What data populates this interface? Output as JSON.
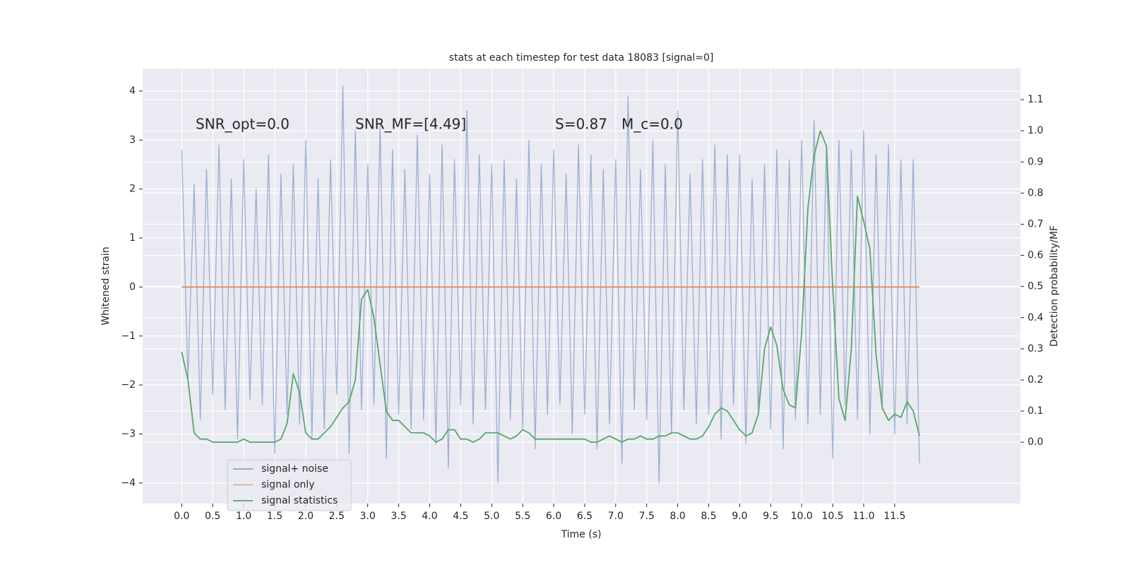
{
  "chart_data": {
    "type": "line",
    "title": "stats at each timestep for test data 18083 [signal=0]",
    "xlabel": "Time (s)",
    "ylabel": "Whitened strain",
    "y2label": "Detection probability/MF",
    "annotations": [
      "SNR_opt=0.0",
      "SNR_MF=[4.49]",
      "S=0.87",
      "M_c=0.0"
    ],
    "x": [
      0,
      0.1,
      0.2,
      0.3,
      0.4,
      0.5,
      0.6,
      0.7,
      0.8,
      0.9,
      1,
      1.1,
      1.2,
      1.3,
      1.4,
      1.5,
      1.6,
      1.7,
      1.8,
      1.9,
      2,
      2.1,
      2.2,
      2.3,
      2.4,
      2.5,
      2.6,
      2.7,
      2.8,
      2.9,
      3,
      3.1,
      3.2,
      3.3,
      3.4,
      3.5,
      3.6,
      3.7,
      3.8,
      3.9,
      4,
      4.1,
      4.2,
      4.3,
      4.4,
      4.5,
      4.6,
      4.7,
      4.8,
      4.9,
      5,
      5.1,
      5.2,
      5.3,
      5.4,
      5.5,
      5.6,
      5.7,
      5.8,
      5.9,
      6,
      6.1,
      6.2,
      6.3,
      6.4,
      6.5,
      6.6,
      6.7,
      6.8,
      6.9,
      7,
      7.1,
      7.2,
      7.3,
      7.4,
      7.5,
      7.6,
      7.7,
      7.8,
      7.9,
      8,
      8.1,
      8.2,
      8.3,
      8.4,
      8.5,
      8.6,
      8.7,
      8.8,
      8.9,
      9,
      9.1,
      9.2,
      9.3,
      9.4,
      9.5,
      9.6,
      9.7,
      9.8,
      9.9,
      10,
      10.1,
      10.2,
      10.3,
      10.4,
      10.5,
      10.6,
      10.7,
      10.8,
      10.9,
      11,
      11.1,
      11.2,
      11.3,
      11.4,
      11.5,
      11.6,
      11.7,
      11.8,
      11.9
    ],
    "series": [
      {
        "name": "signal+ noise",
        "color": "#4c72b0",
        "values": [
          2.8,
          -1.9,
          2.1,
          -2.7,
          2.4,
          -2.2,
          2.9,
          -2.5,
          2.2,
          -3.1,
          2.6,
          -2.3,
          2.0,
          -2.4,
          2.7,
          -3.4,
          2.3,
          -2.6,
          2.5,
          -2.8,
          3.0,
          -3.1,
          2.2,
          -2.9,
          2.6,
          -2.2,
          4.1,
          -3.4,
          3.2,
          -2.5,
          2.5,
          -2.4,
          3.3,
          -3.5,
          2.8,
          -2.6,
          2.4,
          -2.9,
          3.1,
          -2.7,
          2.3,
          -3.2,
          2.9,
          -3.7,
          2.6,
          -2.4,
          3.6,
          -2.8,
          2.7,
          -2.5,
          2.5,
          -4.0,
          2.6,
          -2.7,
          2.2,
          -2.9,
          3.0,
          -3.3,
          2.5,
          -2.6,
          2.8,
          -2.4,
          2.3,
          -3.0,
          2.9,
          -2.6,
          2.7,
          -3.3,
          2.4,
          -2.8,
          2.6,
          -3.6,
          3.9,
          -2.5,
          2.4,
          -2.7,
          3.0,
          -4.0,
          2.5,
          -3.0,
          3.6,
          -2.5,
          2.3,
          -2.8,
          2.6,
          -2.6,
          2.9,
          -3.1,
          2.7,
          -2.4,
          2.7,
          -3.2,
          2.2,
          -2.6,
          2.5,
          -2.9,
          2.8,
          -3.3,
          2.6,
          -2.7,
          3.0,
          -2.8,
          3.4,
          -2.6,
          2.9,
          -3.5,
          3.0,
          -2.4,
          2.8,
          -2.7,
          3.2,
          -3.0,
          2.7,
          -2.5,
          2.9,
          -3.0,
          2.6,
          -2.8,
          2.6,
          -3.6
        ]
      },
      {
        "name": "signal only",
        "color": "#dd8452",
        "x": [
          0,
          11.9
        ],
        "values": [
          0,
          0
        ]
      },
      {
        "name": "signal statistics",
        "color": "#55a868",
        "axis": "y2",
        "values": [
          0.29,
          0.2,
          0.03,
          0.01,
          0.01,
          0.0,
          0.0,
          0.0,
          0.0,
          0.0,
          0.01,
          0.0,
          0.0,
          0.0,
          0.0,
          0.0,
          0.01,
          0.06,
          0.22,
          0.16,
          0.03,
          0.01,
          0.01,
          0.03,
          0.05,
          0.08,
          0.11,
          0.13,
          0.2,
          0.46,
          0.49,
          0.4,
          0.25,
          0.1,
          0.07,
          0.07,
          0.05,
          0.03,
          0.03,
          0.03,
          0.02,
          0.0,
          0.01,
          0.04,
          0.04,
          0.01,
          0.01,
          0.0,
          0.01,
          0.03,
          0.03,
          0.03,
          0.02,
          0.01,
          0.02,
          0.04,
          0.03,
          0.01,
          0.01,
          0.01,
          0.01,
          0.01,
          0.01,
          0.01,
          0.01,
          0.01,
          0.0,
          0.0,
          0.01,
          0.02,
          0.01,
          0.0,
          0.01,
          0.01,
          0.02,
          0.01,
          0.01,
          0.02,
          0.02,
          0.03,
          0.03,
          0.02,
          0.01,
          0.01,
          0.02,
          0.05,
          0.09,
          0.11,
          0.1,
          0.07,
          0.04,
          0.02,
          0.03,
          0.09,
          0.3,
          0.37,
          0.31,
          0.17,
          0.12,
          0.11,
          0.35,
          0.75,
          0.92,
          1.0,
          0.95,
          0.5,
          0.14,
          0.07,
          0.3,
          0.79,
          0.71,
          0.62,
          0.28,
          0.11,
          0.07,
          0.09,
          0.08,
          0.13,
          0.1,
          0.02
        ]
      }
    ],
    "xlim": [
      -0.63,
      13.53
    ],
    "ylim": [
      -4.42,
      4.46
    ],
    "y2lim": [
      -0.197,
      1.2
    ],
    "xticks": [
      {
        "value": 0,
        "label": "0.0"
      },
      {
        "value": 0.5,
        "label": "0.5"
      },
      {
        "value": 1,
        "label": "1.0"
      },
      {
        "value": 1.5,
        "label": "1.5"
      },
      {
        "value": 2,
        "label": "2.0"
      },
      {
        "value": 2.5,
        "label": "2.5"
      },
      {
        "value": 3,
        "label": "3.0"
      },
      {
        "value": 3.5,
        "label": "3.5"
      },
      {
        "value": 4,
        "label": "4.0"
      },
      {
        "value": 4.5,
        "label": "4.5"
      },
      {
        "value": 5,
        "label": "5.0"
      },
      {
        "value": 5.5,
        "label": "5.5"
      },
      {
        "value": 6,
        "label": "6.0"
      },
      {
        "value": 6.5,
        "label": "6.5"
      },
      {
        "value": 7,
        "label": "7.0"
      },
      {
        "value": 7.5,
        "label": "7.5"
      },
      {
        "value": 8,
        "label": "8.0"
      },
      {
        "value": 8.5,
        "label": "8.5"
      },
      {
        "value": 9,
        "label": "9.0"
      },
      {
        "value": 9.5,
        "label": "9.5"
      },
      {
        "value": 10,
        "label": "10.0"
      },
      {
        "value": 10.5,
        "label": "10.5"
      },
      {
        "value": 11,
        "label": "11.0"
      },
      {
        "value": 11.5,
        "label": "11.5"
      }
    ],
    "yticks": [
      {
        "value": -4,
        "label": "−4"
      },
      {
        "value": -3,
        "label": "−3"
      },
      {
        "value": -2,
        "label": "−2"
      },
      {
        "value": -1,
        "label": "−1"
      },
      0,
      1,
      2,
      3,
      4
    ],
    "y2ticks": [
      {
        "value": 0,
        "label": "0.0"
      },
      {
        "value": 0.1,
        "label": "0.1"
      },
      {
        "value": 0.2,
        "label": "0.2"
      },
      {
        "value": 0.3,
        "label": "0.3"
      },
      {
        "value": 0.4,
        "label": "0.4"
      },
      {
        "value": 0.5,
        "label": "0.5"
      },
      {
        "value": 0.6,
        "label": "0.6"
      },
      {
        "value": 0.7,
        "label": "0.7"
      },
      {
        "value": 0.8,
        "label": "0.8"
      },
      {
        "value": 0.9,
        "label": "0.9"
      },
      {
        "value": 1,
        "label": "1.0"
      },
      {
        "value": 1.1,
        "label": "1.1"
      }
    ],
    "grid": true,
    "legend": "lower left"
  }
}
